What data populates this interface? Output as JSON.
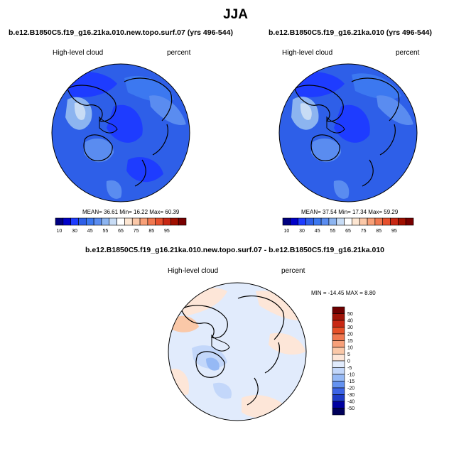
{
  "page_title": "JJA",
  "colors": {
    "land_outline": "#000000",
    "ocean_outline": "#000000",
    "mean_palette": [
      "#000080",
      "#0000c8",
      "#1e3cff",
      "#2e5fe8",
      "#3c78f0",
      "#5a8cf0",
      "#8cb4f0",
      "#c8dcf5",
      "#ffffff",
      "#fde6d2",
      "#fbc8a8",
      "#f8a078",
      "#f07850",
      "#e6502d",
      "#c82814",
      "#a01000",
      "#780000"
    ],
    "diff_palette": [
      "#00005a",
      "#0000a0",
      "#1e3cc8",
      "#3c64e6",
      "#6492f0",
      "#96b9f5",
      "#c3d7fa",
      "#e1ebfc",
      "#fde6d8",
      "#fac8a8",
      "#f7a07a",
      "#f07850",
      "#e65028",
      "#c82814",
      "#a01408",
      "#6e0000"
    ]
  },
  "chart_data": [
    {
      "type": "heatmap",
      "projection": "north-polar-stereographic",
      "title": "b.e12.B1850C5.f19_g16.21ka.010.new.topo.surf.07 (yrs 496-544)",
      "left_label": "High-level cloud",
      "right_label": "percent",
      "stats": {
        "text": "MEAN= 36.61  Min= 16.22  Max= 60.39",
        "mean": 36.61,
        "min": 16.22,
        "max": 60.39
      },
      "colorbar": {
        "orientation": "horizontal",
        "ticks": [
          "10",
          "30",
          "45",
          "55",
          "65",
          "75",
          "85",
          "95"
        ]
      }
    },
    {
      "type": "heatmap",
      "projection": "north-polar-stereographic",
      "title": "b.e12.B1850C5.f19_g16.21ka.010 (yrs 496-544)",
      "left_label": "High-level cloud",
      "right_label": "percent",
      "stats": {
        "text": "MEAN= 37.54  Min= 17.34  Max= 59.29",
        "mean": 37.54,
        "min": 17.34,
        "max": 59.29
      },
      "colorbar": {
        "orientation": "horizontal",
        "ticks": [
          "10",
          "30",
          "45",
          "55",
          "65",
          "75",
          "85",
          "95"
        ]
      }
    },
    {
      "type": "heatmap",
      "projection": "north-polar-stereographic",
      "title": "b.e12.B1850C5.f19_g16.21ka.010.new.topo.surf.07 - b.e12.B1850C5.f19_g16.21ka.010",
      "left_label": "High-level cloud",
      "right_label": "percent",
      "stats": {
        "text": "MIN = -14.45 MAX =   8.80",
        "min": -14.45,
        "max": 8.8
      },
      "colorbar": {
        "orientation": "vertical",
        "ticks": [
          "50",
          "40",
          "30",
          "20",
          "15",
          "10",
          "5",
          "0",
          "-5",
          "-10",
          "-15",
          "-20",
          "-30",
          "-40",
          "-50"
        ]
      }
    }
  ]
}
